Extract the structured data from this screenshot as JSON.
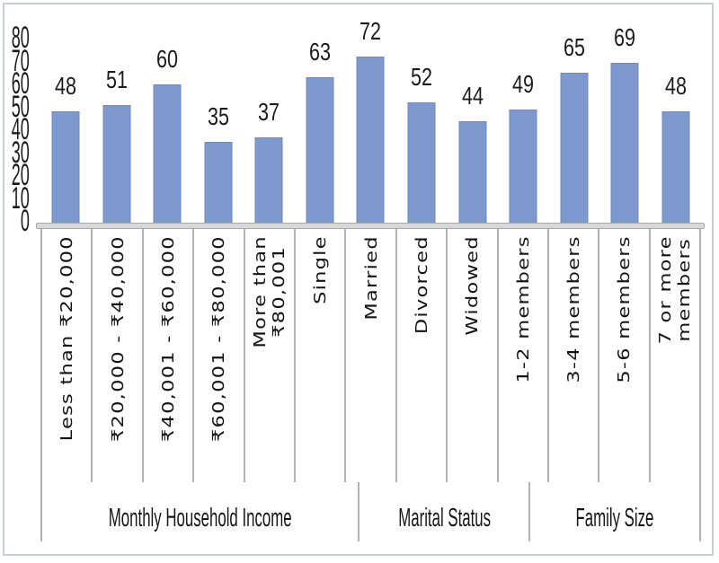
{
  "chart_data": {
    "type": "bar",
    "title": "",
    "xlabel": "",
    "ylabel": "",
    "ylim": [
      0,
      80
    ],
    "yticks": [
      0,
      10,
      20,
      30,
      40,
      50,
      60,
      70,
      80
    ],
    "grid": false,
    "legend": false,
    "bar_color": "#7d99ce",
    "bar_border_color": "#7089be",
    "baseline_color": "#d8d8d8",
    "separator_color": "#b3b3b3",
    "frame_border_color": "#c7ced6",
    "groups": [
      {
        "label": "Monthly Household Income",
        "categories": [
          "Less than ₹20,000",
          "₹20,000 - ₹40,000",
          "₹40,001 - ₹60,000",
          "₹60,001 - ₹80,000",
          "More than\n₹80,001"
        ],
        "values": [
          48,
          51,
          60,
          35,
          37
        ]
      },
      {
        "label": "Marital Status",
        "categories": [
          "Single",
          "Married",
          "Divorced",
          "Widowed"
        ],
        "values": [
          63,
          72,
          52,
          44
        ]
      },
      {
        "label": "Family Size",
        "categories": [
          "1-2 members",
          "3-4 members",
          "5-6 members",
          "7 or more\nmembers"
        ],
        "values": [
          49,
          65,
          69,
          48
        ]
      }
    ]
  }
}
